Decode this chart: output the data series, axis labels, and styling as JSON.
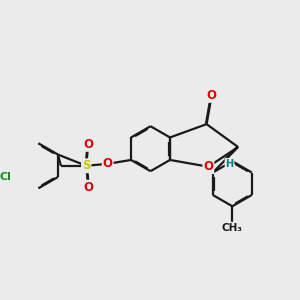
{
  "background_color": "#ebebeb",
  "bond_color": "#1a1a1a",
  "line_width": 1.6,
  "dbo": 0.018,
  "atom_colors": {
    "O": "#e00000",
    "S": "#c8c800",
    "Cl": "#1a8c1a",
    "H": "#008080",
    "C": "#1a1a1a"
  },
  "font_size": 8.5
}
